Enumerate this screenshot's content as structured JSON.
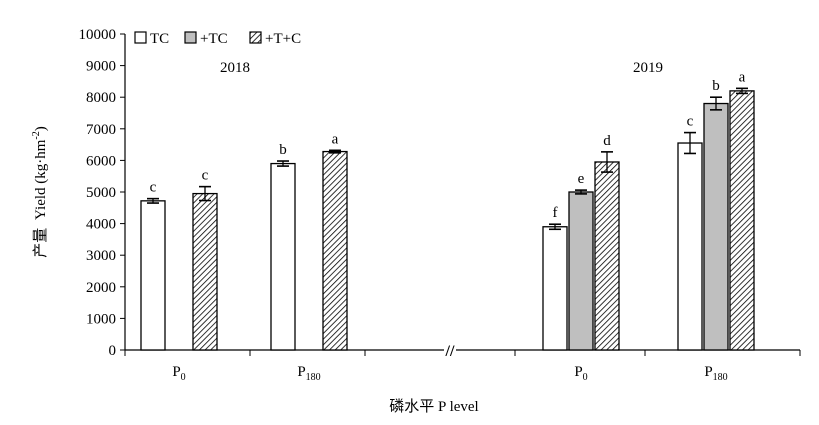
{
  "chart_data": {
    "type": "bar",
    "ylabel_cn": "产量",
    "ylabel_en": "Yield (kg·hm",
    "ylabel_sup": "-2",
    "ylabel_close": ")",
    "xlabel": "磷水平 P level",
    "ylim": [
      0,
      10000
    ],
    "yticks": [
      0,
      1000,
      2000,
      3000,
      4000,
      5000,
      6000,
      7000,
      8000,
      9000,
      10000
    ],
    "legend_position": "top-left",
    "series": [
      {
        "name": "TC",
        "fill": "#ffffff",
        "pattern": "none"
      },
      {
        "name": "+TC",
        "fill": "#bfbfbf",
        "pattern": "none"
      },
      {
        "name": "+T+C",
        "fill": "#ffffff",
        "pattern": "diagonal-hatch"
      }
    ],
    "panels": [
      {
        "year": "2018",
        "groups": [
          {
            "label": "P",
            "sub": "0",
            "bars": [
              {
                "series": "TC",
                "value": 4720,
                "error": 70,
                "letter": "c"
              },
              {
                "series": "+T+C",
                "value": 4950,
                "error": 220,
                "letter": "c"
              }
            ]
          },
          {
            "label": "P",
            "sub": "180",
            "bars": [
              {
                "series": "TC",
                "value": 5900,
                "error": 80,
                "letter": "b"
              },
              {
                "series": "+T+C",
                "value": 6280,
                "error": 40,
                "letter": "a"
              }
            ]
          }
        ]
      },
      {
        "year": "2019",
        "groups": [
          {
            "label": "P",
            "sub": "0",
            "bars": [
              {
                "series": "TC",
                "value": 3900,
                "error": 80,
                "letter": "f"
              },
              {
                "series": "+TC",
                "value": 5000,
                "error": 60,
                "letter": "e"
              },
              {
                "series": "+T+C",
                "value": 5950,
                "error": 320,
                "letter": "d"
              }
            ]
          },
          {
            "label": "P",
            "sub": "180",
            "bars": [
              {
                "series": "TC",
                "value": 6550,
                "error": 330,
                "letter": "c"
              },
              {
                "series": "+TC",
                "value": 7800,
                "error": 200,
                "letter": "b"
              },
              {
                "series": "+T+C",
                "value": 8200,
                "error": 80,
                "letter": "a"
              }
            ]
          }
        ]
      }
    ],
    "axis_break_mark": "//"
  }
}
